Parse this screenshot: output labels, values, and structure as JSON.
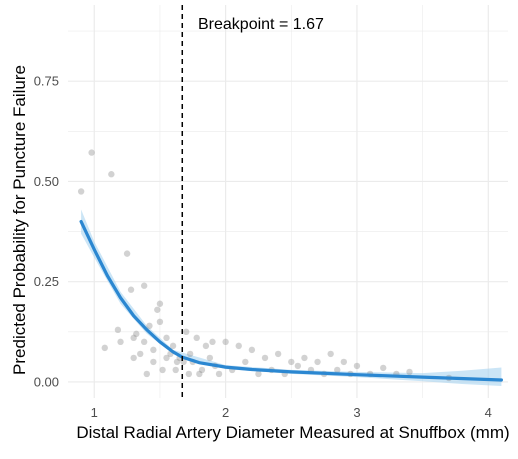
{
  "chart_data": {
    "type": "scatter",
    "title": "",
    "xlabel": "Distal Radial Artery Diameter Measured at Snuffbox (mm)",
    "ylabel": "Predicted Probability for Puncture Failure",
    "xlim": [
      0.8,
      4.15
    ],
    "ylim": [
      -0.04,
      0.94
    ],
    "x_ticks": [
      1,
      2,
      3,
      4
    ],
    "x_tick_labels": [
      "1",
      "2",
      "3",
      "4"
    ],
    "y_ticks": [
      0,
      0.25,
      0.5,
      0.75
    ],
    "y_tick_labels": [
      "0.00",
      "0.25",
      "0.50",
      "0.75"
    ],
    "grid": true,
    "legend": "none",
    "breakpoint": {
      "x": 1.67,
      "label": "Breakpoint = 1.67"
    },
    "colors": {
      "points": "#7f7f7f",
      "fit_line": "#2b87d1",
      "ribbon": "#a9d4f0",
      "grid": "#ebebeb",
      "breakpoint_line": "#000000"
    },
    "fit_curve": {
      "x": [
        0.9,
        1.0,
        1.1,
        1.2,
        1.3,
        1.4,
        1.5,
        1.6,
        1.67,
        1.8,
        2.0,
        2.2,
        2.5,
        3.0,
        3.5,
        4.1
      ],
      "y": [
        0.4,
        0.33,
        0.265,
        0.21,
        0.165,
        0.13,
        0.1,
        0.075,
        0.062,
        0.048,
        0.037,
        0.031,
        0.025,
        0.018,
        0.012,
        0.005
      ]
    },
    "ribbon": {
      "x": [
        0.9,
        1.0,
        1.2,
        1.4,
        1.6,
        2.0,
        2.5,
        3.0,
        3.5,
        3.8,
        4.1
      ],
      "lower": [
        0.37,
        0.31,
        0.195,
        0.12,
        0.07,
        0.032,
        0.02,
        0.012,
        0.002,
        -0.005,
        -0.01
      ],
      "upper": [
        0.43,
        0.35,
        0.225,
        0.14,
        0.08,
        0.042,
        0.03,
        0.025,
        0.022,
        0.028,
        0.036
      ]
    },
    "points": {
      "x": [
        0.9,
        0.98,
        1.13,
        1.08,
        1.18,
        1.2,
        1.25,
        1.28,
        1.3,
        1.3,
        1.32,
        1.35,
        1.38,
        1.38,
        1.4,
        1.42,
        1.45,
        1.45,
        1.48,
        1.5,
        1.5,
        1.52,
        1.55,
        1.55,
        1.58,
        1.6,
        1.62,
        1.63,
        1.65,
        1.68,
        1.7,
        1.72,
        1.73,
        1.75,
        1.78,
        1.8,
        1.82,
        1.85,
        1.88,
        1.9,
        1.92,
        1.95,
        2.0,
        2.05,
        2.1,
        2.15,
        2.2,
        2.25,
        2.3,
        2.35,
        2.4,
        2.45,
        2.5,
        2.55,
        2.6,
        2.65,
        2.7,
        2.75,
        2.8,
        2.85,
        2.9,
        2.95,
        3.0,
        3.1,
        3.2,
        3.3,
        3.4,
        3.7
      ],
      "y": [
        0.475,
        0.572,
        0.518,
        0.085,
        0.13,
        0.1,
        0.32,
        0.23,
        0.11,
        0.06,
        0.12,
        0.07,
        0.24,
        0.1,
        0.02,
        0.14,
        0.08,
        0.05,
        0.18,
        0.195,
        0.15,
        0.03,
        0.11,
        0.06,
        0.07,
        0.09,
        0.03,
        0.05,
        0.06,
        0.05,
        0.125,
        0.02,
        0.07,
        0.05,
        0.11,
        0.02,
        0.03,
        0.09,
        0.06,
        0.1,
        0.04,
        0.02,
        0.1,
        0.03,
        0.09,
        0.05,
        0.08,
        0.02,
        0.06,
        0.03,
        0.07,
        0.02,
        0.05,
        0.04,
        0.06,
        0.03,
        0.05,
        0.02,
        0.07,
        0.03,
        0.05,
        0.02,
        0.04,
        0.02,
        0.035,
        0.02,
        0.025,
        0.01
      ]
    }
  }
}
